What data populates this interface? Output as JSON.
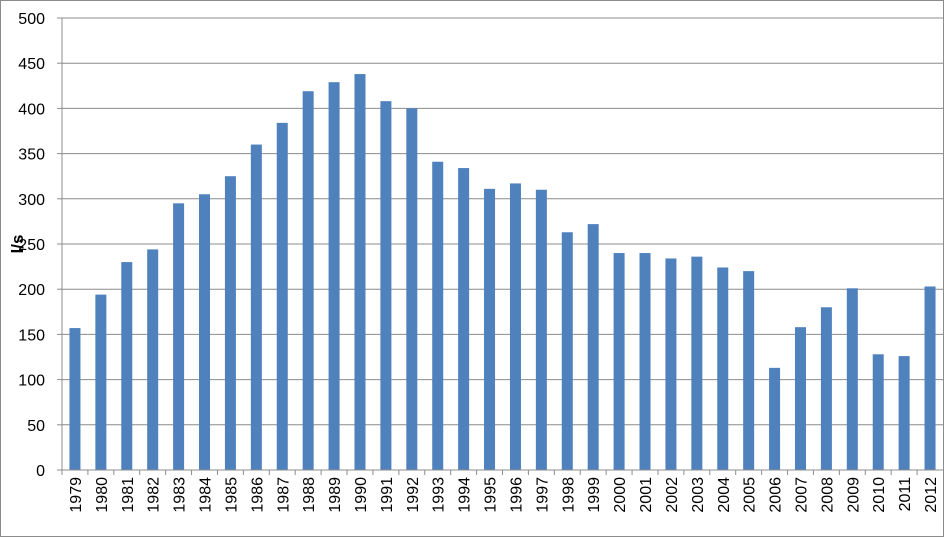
{
  "chart_data": {
    "type": "bar",
    "title": "",
    "xlabel": "",
    "ylabel": "l/s",
    "ylim": [
      0,
      500
    ],
    "yticks": [
      "0",
      "50",
      "100",
      "150",
      "200",
      "250",
      "300",
      "350",
      "400",
      "450",
      "500"
    ],
    "grid": true,
    "legend": "none",
    "bar_color": "#4f81bd",
    "categories": [
      "1979",
      "1980",
      "1981",
      "1982",
      "1983",
      "1984",
      "1985",
      "1986",
      "1987",
      "1988",
      "1989",
      "1990",
      "1991",
      "1992",
      "1993",
      "1994",
      "1995",
      "1996",
      "1997",
      "1998",
      "1999",
      "2000",
      "2001",
      "2002",
      "2003",
      "2004",
      "2005",
      "2006",
      "2007",
      "2008",
      "2009",
      "2010",
      "2011",
      "2012"
    ],
    "values": [
      157,
      194,
      230,
      244,
      295,
      305,
      325,
      360,
      384,
      419,
      429,
      438,
      408,
      400,
      341,
      334,
      311,
      317,
      310,
      263,
      272,
      240,
      240,
      234,
      236,
      224,
      220,
      113,
      158,
      180,
      201,
      128,
      126,
      203
    ]
  }
}
